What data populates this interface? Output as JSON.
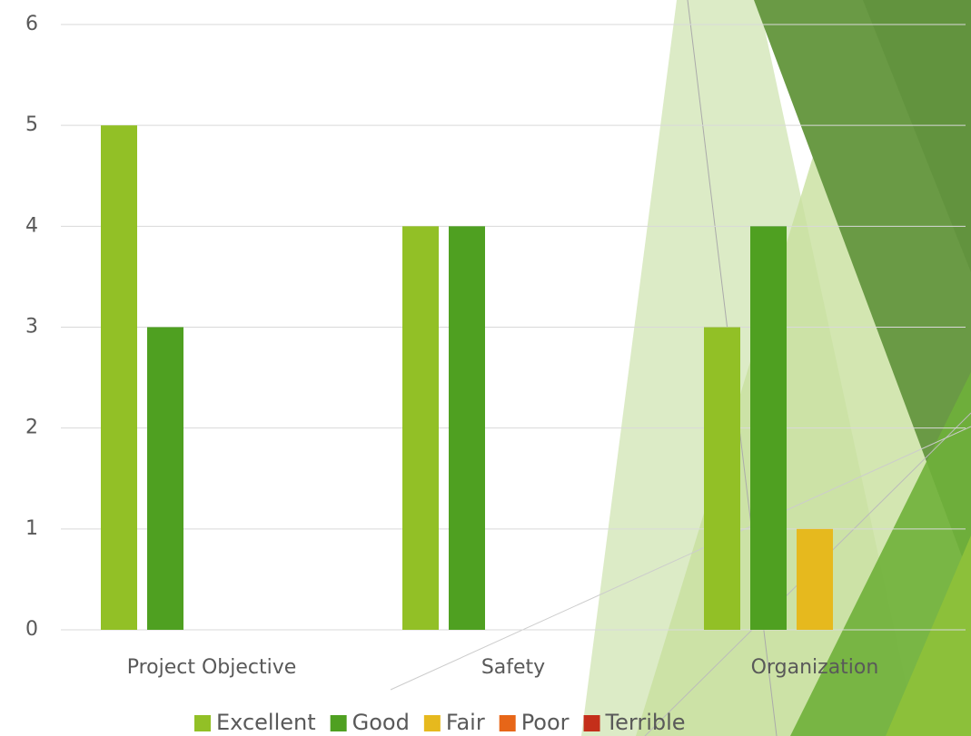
{
  "chart_data": {
    "type": "bar",
    "categories": [
      "Project Objective",
      "Safety",
      "Organization"
    ],
    "series": [
      {
        "name": "Excellent",
        "color": "#92c026",
        "values": [
          5,
          4,
          3
        ]
      },
      {
        "name": "Good",
        "color": "#4fa021",
        "values": [
          3,
          4,
          4
        ]
      },
      {
        "name": "Fair",
        "color": "#e6b91e",
        "values": [
          0,
          0,
          1
        ]
      },
      {
        "name": "Poor",
        "color": "#e76618",
        "values": [
          0,
          0,
          0
        ]
      },
      {
        "name": "Terrible",
        "color": "#c42f1a",
        "values": [
          0,
          0,
          0
        ]
      }
    ],
    "ylim": [
      0,
      6
    ],
    "yticks": [
      0,
      1,
      2,
      3,
      4,
      5,
      6
    ],
    "grid": true,
    "legend": "bottom"
  }
}
